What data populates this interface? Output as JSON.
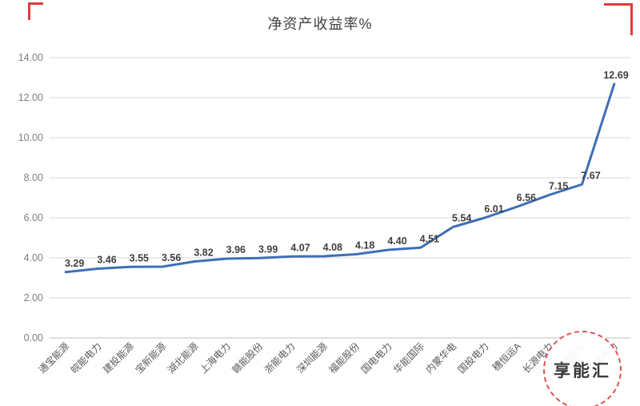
{
  "chart_data": {
    "type": "line",
    "title": "净资产收益率%",
    "categories": [
      "通宝能源",
      "皖能电力",
      "建投能源",
      "宝新能源",
      "湖北能源",
      "上海电力",
      "赣能股份",
      "浙能电力",
      "深圳能源",
      "福能股份",
      "国电电力",
      "华能国际",
      "内蒙华电",
      "国投电力",
      "穗恒运A",
      "长源电力",
      "韶能股份",
      "涪陵电力"
    ],
    "values": [
      3.29,
      3.46,
      3.55,
      3.56,
      3.82,
      3.96,
      3.99,
      4.07,
      4.08,
      4.18,
      4.4,
      4.51,
      5.54,
      6.01,
      6.56,
      7.15,
      7.67,
      12.69
    ],
    "ylim": [
      0,
      14
    ],
    "ytick_step": 2,
    "grid": true,
    "legend": "none",
    "line_color": "#3e6fb6",
    "grid_color": "#d9d9d9",
    "axis_line_color": "#bfbfbf",
    "data_label_color": "#3f3f3f",
    "ytick_color": "#7f7f7f",
    "xtick_color": "#595959"
  },
  "watermark": {
    "text": "享能汇"
  },
  "decorations": {
    "corner_color": "#e03b3b"
  }
}
